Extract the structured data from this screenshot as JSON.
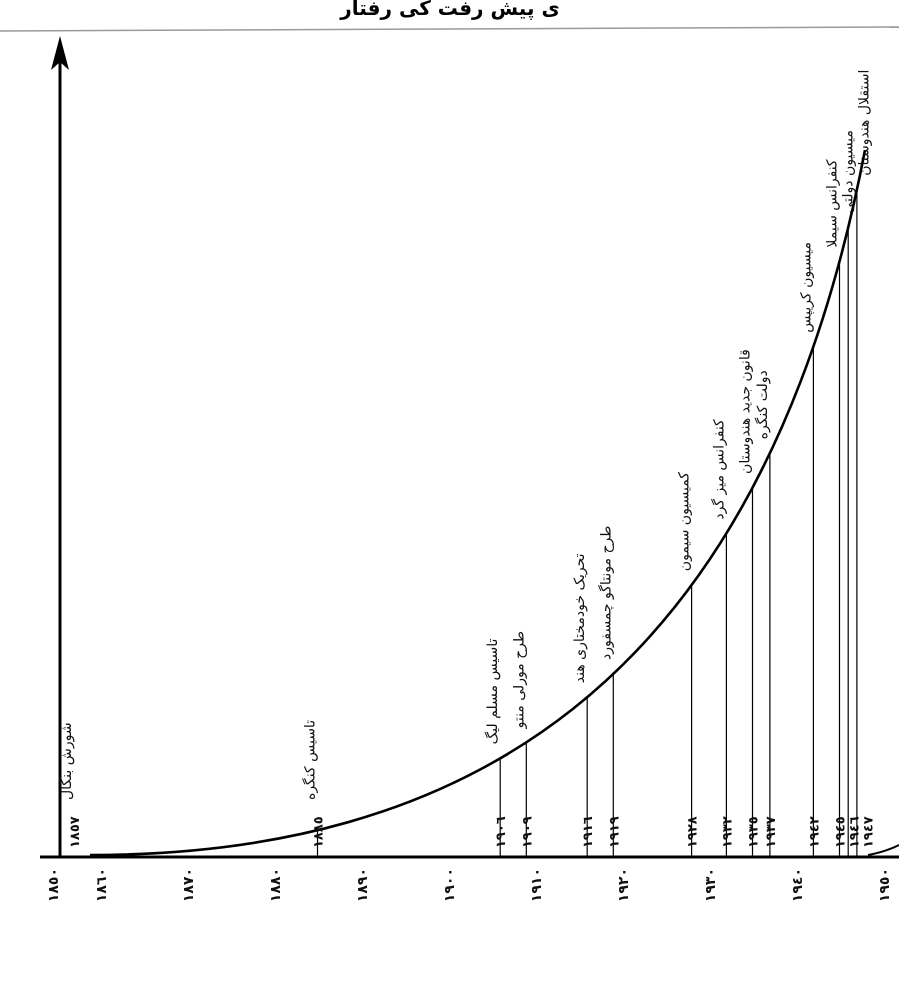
{
  "chart_data": {
    "type": "line",
    "title": "ی پیش رفت کی رفتار",
    "xlabel": "",
    "ylabel": "",
    "grid": false,
    "x_ticks": [
      "١٨٥٠",
      "١٨٦٠",
      "١٨٧٠",
      "١٨٨٠",
      "١٨٩٠",
      "١٩٠٠",
      "١٩١٠",
      "١٩٢٠",
      "١٩٣٠",
      "١٩٤٠",
      "١٩٥٠"
    ],
    "x_values": [
      1850,
      1860,
      1870,
      1880,
      1890,
      1900,
      1910,
      1920,
      1930,
      1940,
      1950
    ],
    "xlim": [
      1850,
      1950
    ],
    "events": [
      {
        "year": 1857,
        "year_label": "١٨٥٧",
        "label": "شورش بنگال"
      },
      {
        "year": 1885,
        "year_label": "١٨٨٥",
        "label": "تاسیس کنگره"
      },
      {
        "year": 1906,
        "year_label": "١٩٠٦",
        "label": "تاسیس مسلم لیگ"
      },
      {
        "year": 1909,
        "year_label": "١٩٠٩",
        "label": "طرح مورلی منتو"
      },
      {
        "year": 1916,
        "year_label": "١٩١٦",
        "label": "تحریک خودمختاری هند"
      },
      {
        "year": 1919,
        "year_label": "١٩١٩",
        "label": "طرح مونتاگو چمسفورد"
      },
      {
        "year": 1928,
        "year_label": "١٩٢٨",
        "label": "کمیسیون سیمون"
      },
      {
        "year": 1932,
        "year_label": "١٩٣٢",
        "label": "کنفرانس میز گرد"
      },
      {
        "year": 1935,
        "year_label": "١٩٣٥",
        "label": "قانون جدید هندوستان"
      },
      {
        "year": 1937,
        "year_label": "١٩٣٧",
        "label": "دولت کنگره"
      },
      {
        "year": 1942,
        "year_label": "١٩٤٢",
        "label": "میسیون کریپس"
      },
      {
        "year": 1945,
        "year_label": "١٩٤٥",
        "label": "کنفرانس سیملا"
      },
      {
        "year": 1946,
        "year_label": "١٩٤٦",
        "label": "میسیون دولتی"
      },
      {
        "year": 1947,
        "year_label": "١٩٤٧",
        "label": "استقلال هندوستان"
      }
    ]
  }
}
